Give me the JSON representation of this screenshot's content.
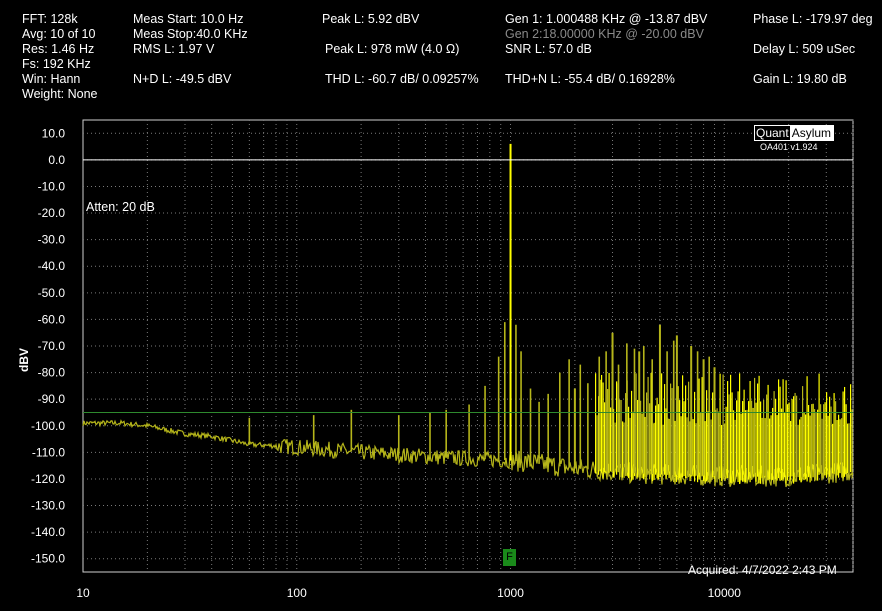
{
  "header": {
    "fft": "FFT:  128k",
    "avg": "Avg: 10 of 10",
    "res": "Res: 1.46 Hz",
    "fs": "Fs: 192 KHz",
    "win": "Win: Hann",
    "weight": "Weight: None",
    "meas_start": "Meas Start: 10.0 Hz",
    "meas_stop": "Meas Stop:40.0 KHz",
    "rms": "RMS L: 1.97 V",
    "nd": "N+D L: -49.5 dBV",
    "peak_dbv": "Peak L: 5.92 dBV",
    "peak_mw": "Peak L: 978 mW (4.0 Ω)",
    "thd": "THD L: -60.7 dB/ 0.09257%",
    "gen1": "Gen 1: 1.000488 KHz @ -13.87  dBV",
    "gen2": "Gen 2:18.00000 KHz @ -20.00  dBV",
    "snr": "SNR L: 57.0 dB",
    "thdn": "THD+N L: -55.4 dB/ 0.16928%",
    "phase": "Phase L: -179.97 deg",
    "delay": "Delay L: 509 uSec",
    "gain": "Gain L: 19.80 dB"
  },
  "logo": {
    "part1": "Quant",
    "part2": "Asylum",
    "version": "OA401 v1.924"
  },
  "atten_text": "Atten: 20 dB",
  "acquired_text": "Acquired: 4/7/2022  2:43 PM",
  "marker_label": "F",
  "colors": {
    "trace": "#ffff00",
    "trace_dim": "#b5b51a",
    "grid": "#7a7a7a",
    "ref_line": "#ffffff",
    "ref_line_green": "#2e8a2e",
    "marker": "#1a8a1a"
  },
  "chart_data": {
    "type": "line",
    "title": "",
    "xlabel": "",
    "ylabel": "dBV",
    "x_scale": "log",
    "xlim": [
      10,
      40000
    ],
    "ylim": [
      -155,
      15
    ],
    "x_ticks": [
      10,
      100,
      1000,
      10000
    ],
    "x_tick_labels": [
      "10",
      "100",
      "1000",
      "10000"
    ],
    "y_ticks": [
      10,
      0,
      -10,
      -20,
      -30,
      -40,
      -50,
      -60,
      -70,
      -80,
      -90,
      -100,
      -110,
      -120,
      -130,
      -140,
      -150
    ],
    "y_tick_labels": [
      "10.0",
      "0.0",
      "-10.0",
      "-20.0",
      "-30.0",
      "-40.0",
      "-50.0",
      "-60.0",
      "-70.0",
      "-80.0",
      "-90.0",
      "-100.0",
      "-110.0",
      "-120.0",
      "-130.0",
      "-140.0",
      "-150.0"
    ],
    "grid": true,
    "reference_lines": [
      {
        "y": 0,
        "color": "#ffffff"
      },
      {
        "y": -95,
        "color": "#2e8a2e"
      }
    ],
    "series": [
      {
        "fundamental": {
          "x": 1000,
          "y": 6
        },
        "harmonics": [
          {
            "x": 2000,
            "y": -86
          },
          {
            "x": 3000,
            "y": -65
          },
          {
            "x": 4000,
            "y": -72
          },
          {
            "x": 5000,
            "y": -62
          },
          {
            "x": 6000,
            "y": -66
          },
          {
            "x": 7000,
            "y": -70
          },
          {
            "x": 8000,
            "y": -75
          },
          {
            "x": 9000,
            "y": -78
          }
        ],
        "spurs": [
          {
            "x": 60,
            "y": -97
          },
          {
            "x": 120,
            "y": -96
          },
          {
            "x": 180,
            "y": -94
          },
          {
            "x": 300,
            "y": -96
          },
          {
            "x": 420,
            "y": -95
          },
          {
            "x": 500,
            "y": -94
          },
          {
            "x": 640,
            "y": -92
          },
          {
            "x": 760,
            "y": -85
          },
          {
            "x": 880,
            "y": -74
          },
          {
            "x": 940,
            "y": -61
          },
          {
            "x": 1060,
            "y": -62
          },
          {
            "x": 1120,
            "y": -72
          },
          {
            "x": 1240,
            "y": -86
          },
          {
            "x": 1360,
            "y": -91
          },
          {
            "x": 1500,
            "y": -88
          },
          {
            "x": 1700,
            "y": -80
          },
          {
            "x": 1880,
            "y": -75
          },
          {
            "x": 2120,
            "y": -77
          },
          {
            "x": 2300,
            "y": -84
          },
          {
            "x": 2600,
            "y": -74
          },
          {
            "x": 2800,
            "y": -72
          },
          {
            "x": 3200,
            "y": -77
          },
          {
            "x": 3500,
            "y": -69
          },
          {
            "x": 3800,
            "y": -71
          },
          {
            "x": 4200,
            "y": -70
          },
          {
            "x": 4600,
            "y": -75
          },
          {
            "x": 5400,
            "y": -72
          },
          {
            "x": 5800,
            "y": -68
          },
          {
            "x": 7500,
            "y": -72
          },
          {
            "x": 8500,
            "y": -74
          }
        ],
        "noise_floor": [
          {
            "x": 10,
            "y": -99
          },
          {
            "x": 15,
            "y": -99
          },
          {
            "x": 20,
            "y": -100
          },
          {
            "x": 30,
            "y": -103
          },
          {
            "x": 40,
            "y": -104
          },
          {
            "x": 60,
            "y": -107
          },
          {
            "x": 100,
            "y": -108
          },
          {
            "x": 200,
            "y": -110
          },
          {
            "x": 500,
            "y": -112
          },
          {
            "x": 1000,
            "y": -113
          },
          {
            "x": 2000,
            "y": -116
          },
          {
            "x": 4000,
            "y": -118
          },
          {
            "x": 10000,
            "y": -119
          },
          {
            "x": 20000,
            "y": -119
          },
          {
            "x": 40000,
            "y": -117
          }
        ]
      }
    ]
  }
}
